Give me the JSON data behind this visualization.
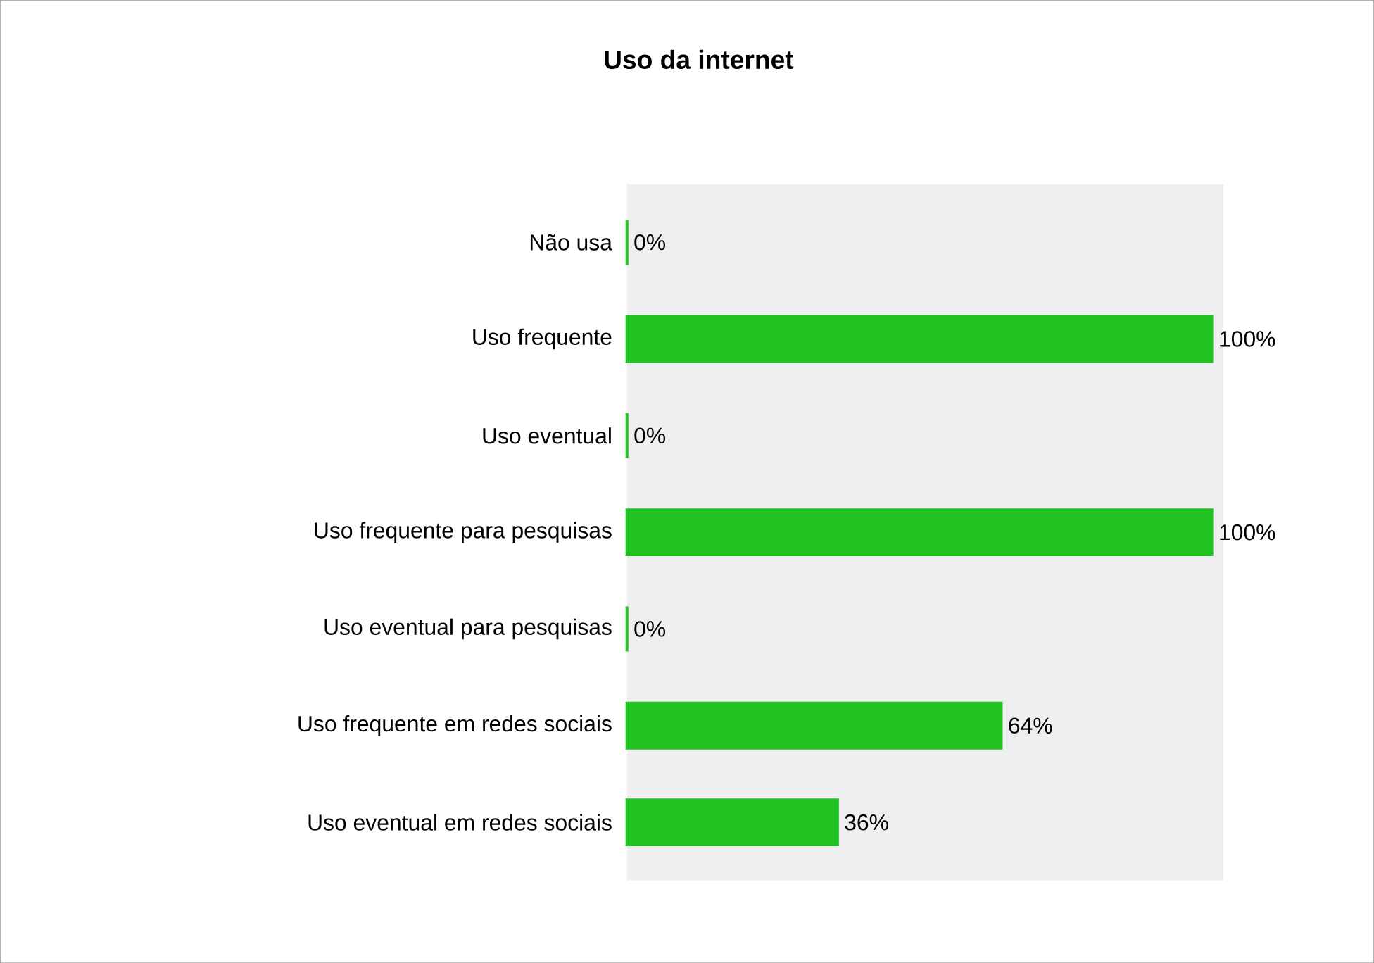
{
  "chart_data": {
    "type": "bar",
    "orientation": "horizontal",
    "title": "Uso da internet",
    "categories": [
      "Não usa",
      "Uso frequente",
      "Uso eventual",
      "Uso frequente para pesquisas",
      "Uso eventual para pesquisas",
      "Uso frequente em redes sociais",
      "Uso eventual em redes sociais"
    ],
    "values": [
      0,
      100,
      0,
      100,
      0,
      64,
      36
    ],
    "value_labels": [
      "0%",
      "100%",
      "0%",
      "100%",
      "0%",
      "64%",
      "36%"
    ],
    "color": "#22c322",
    "grid": false
  }
}
